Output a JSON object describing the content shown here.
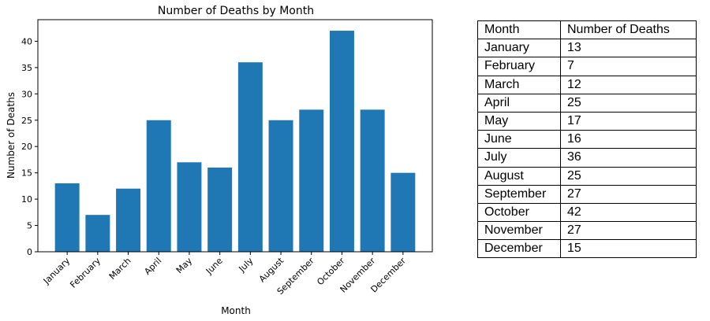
{
  "chart_data": {
    "type": "bar",
    "title": "Number of Deaths by Month",
    "xlabel": "Month",
    "ylabel": "Number of Deaths",
    "categories": [
      "January",
      "February",
      "March",
      "April",
      "May",
      "June",
      "July",
      "August",
      "September",
      "October",
      "November",
      "December"
    ],
    "values": [
      13,
      7,
      12,
      25,
      17,
      16,
      36,
      25,
      27,
      42,
      27,
      15
    ],
    "ylim": [
      0,
      44.1
    ],
    "yticks": [
      0,
      5,
      10,
      15,
      20,
      25,
      30,
      35,
      40
    ],
    "grid": false,
    "color": "#1f77b4"
  },
  "table": {
    "headers": [
      "Month",
      "Number of Deaths"
    ],
    "rows": [
      [
        "January",
        "13"
      ],
      [
        "February",
        "7"
      ],
      [
        "March",
        "12"
      ],
      [
        "April",
        "25"
      ],
      [
        "May",
        "17"
      ],
      [
        "June",
        "16"
      ],
      [
        "July",
        "36"
      ],
      [
        "August",
        "25"
      ],
      [
        "September",
        "27"
      ],
      [
        "October",
        "42"
      ],
      [
        "November",
        "27"
      ],
      [
        "December",
        "15"
      ]
    ]
  }
}
